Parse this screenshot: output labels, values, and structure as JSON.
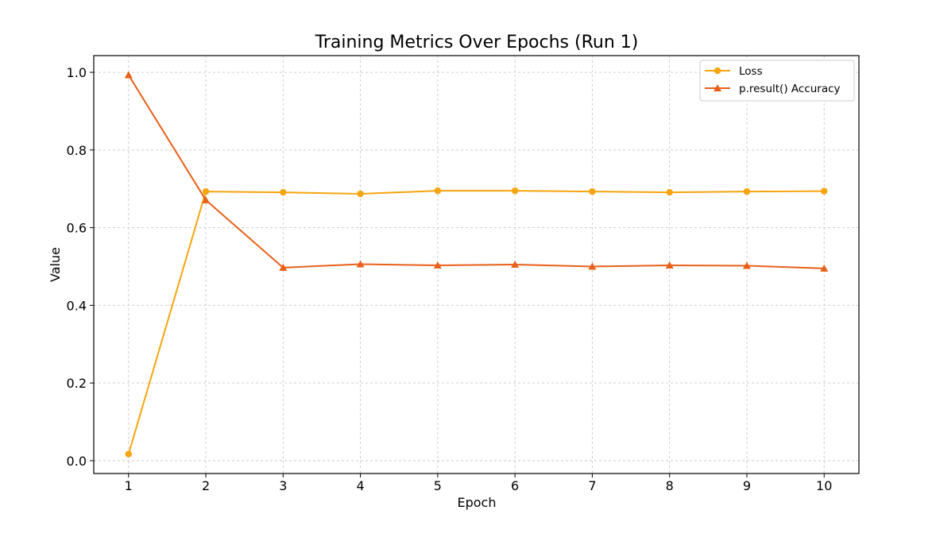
{
  "chart_data": {
    "type": "line",
    "title": "Training Metrics Over Epochs (Run 1)",
    "xlabel": "Epoch",
    "ylabel": "Value",
    "x": [
      1,
      2,
      3,
      4,
      5,
      6,
      7,
      8,
      9,
      10
    ],
    "xticks": [
      "1",
      "2",
      "3",
      "4",
      "5",
      "6",
      "7",
      "8",
      "9",
      "10"
    ],
    "yticks": [
      "0.0",
      "0.2",
      "0.4",
      "0.6",
      "0.8",
      "1.0"
    ],
    "ylim": [
      -0.033,
      1.043
    ],
    "xlim": [
      0.55,
      10.45
    ],
    "grid": true,
    "legend_position": "top-right",
    "series": [
      {
        "name": "Loss",
        "color": "#f5a50f",
        "marker": "circle",
        "values": [
          0.017,
          0.693,
          0.691,
          0.687,
          0.695,
          0.695,
          0.693,
          0.691,
          0.693,
          0.694
        ]
      },
      {
        "name": "p.result() Accuracy",
        "color": "#e8601a",
        "marker": "triangle",
        "values": [
          0.993,
          0.671,
          0.497,
          0.506,
          0.503,
          0.505,
          0.5,
          0.503,
          0.502,
          0.495
        ]
      }
    ]
  }
}
